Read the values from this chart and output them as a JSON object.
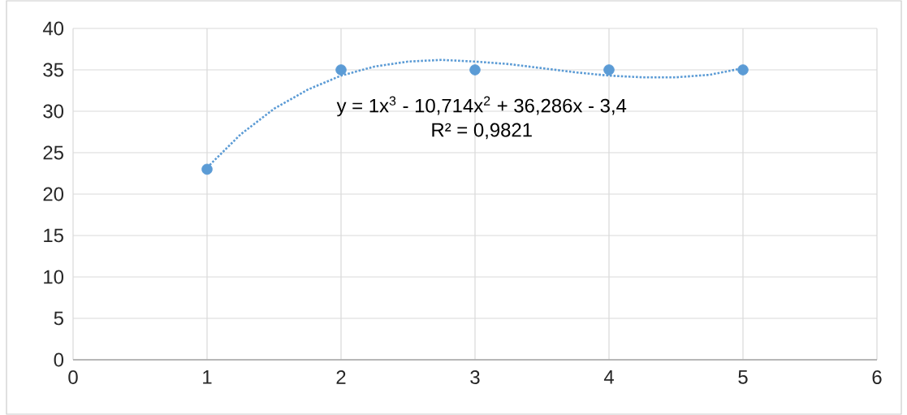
{
  "chart_data": {
    "type": "scatter",
    "series": [
      {
        "color": "#5b9bd5",
        "marker": "circle",
        "x": [
          1,
          2,
          3,
          4,
          5
        ],
        "values": [
          23,
          35,
          35,
          35,
          35
        ]
      },
      {
        "type": "line",
        "color": "#5b9bd5",
        "line_style": "dotted",
        "x": [
          1,
          1.25,
          1.5,
          1.75,
          2,
          2.25,
          2.5,
          2.75,
          3,
          3.25,
          3.5,
          3.75,
          4,
          4.25,
          4.5,
          4.75,
          5
        ],
        "values": [
          23.2,
          27.2,
          30.3,
          32.6,
          34.3,
          35.4,
          36.0,
          36.2,
          36.0,
          35.7,
          35.2,
          34.7,
          34.3,
          34.1,
          34.1,
          34.4,
          35.2
        ]
      }
    ],
    "annotations": [
      "y = 1x$^{3}$ - 10,714x$^{2}$ + 36,286x - 3,4",
      "R² = 0,9821"
    ],
    "xlim": [
      0,
      6
    ],
    "ylim": [
      0,
      40
    ],
    "xticks": [
      0,
      1,
      2,
      3,
      4,
      5,
      6
    ],
    "yticks": [
      0,
      5,
      10,
      15,
      20,
      25,
      30,
      35,
      40
    ],
    "grid": true
  }
}
